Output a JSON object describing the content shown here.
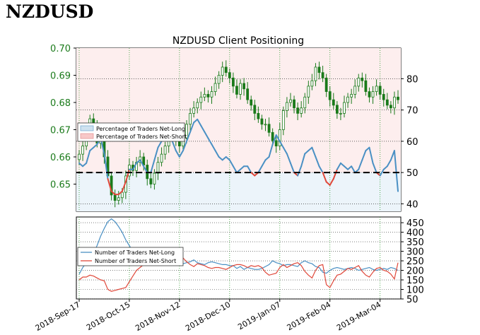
{
  "page_heading": "NZDUSD",
  "chart_data": [
    {
      "type": "candlestick",
      "title": "NZDUSD Client Positioning",
      "left_axis": {
        "ticks": [
          "0.70",
          "0.69",
          "0.68",
          "0.67",
          "0.66",
          "0.65"
        ],
        "ylim": [
          0.64,
          0.7
        ],
        "color": "#1a7a1a"
      },
      "right_axis": {
        "ticks": [
          "80",
          "70",
          "60",
          "50",
          "40"
        ],
        "ylim": [
          37.6,
          89.8
        ]
      },
      "x_ticks": [
        "2018-Sep-17",
        "2018-Oct-15",
        "2018-Nov-12",
        "2018-Dec-10",
        "2019-Jan-07",
        "2019-Feb-04",
        "2019-Mar-04"
      ],
      "reference_line": 50,
      "legend": [
        "Percentage of Traders Net-Long",
        "Percentage of Traders Net-Short"
      ],
      "legend_position": "left",
      "grid": true,
      "series_colors": {
        "net_long": "#4a90c4",
        "net_short": "#e0483a",
        "candle": "#1a7a1a"
      },
      "price_close": [
        0.661,
        0.664,
        0.67,
        0.674,
        0.671,
        0.665,
        0.667,
        0.66,
        0.653,
        0.646,
        0.644,
        0.645,
        0.647,
        0.653,
        0.657,
        0.655,
        0.658,
        0.66,
        0.657,
        0.652,
        0.65,
        0.654,
        0.658,
        0.661,
        0.664,
        0.668,
        0.67,
        0.666,
        0.664,
        0.667,
        0.672,
        0.676,
        0.678,
        0.68,
        0.682,
        0.683,
        0.682,
        0.684,
        0.687,
        0.69,
        0.693,
        0.691,
        0.689,
        0.686,
        0.683,
        0.687,
        0.685,
        0.681,
        0.679,
        0.676,
        0.674,
        0.672,
        0.672,
        0.669,
        0.666,
        0.664,
        0.67,
        0.677,
        0.68,
        0.681,
        0.678,
        0.676,
        0.678,
        0.682,
        0.686,
        0.688,
        0.693,
        0.691,
        0.689,
        0.684,
        0.681,
        0.679,
        0.676,
        0.676,
        0.68,
        0.682,
        0.683,
        0.686,
        0.689,
        0.688,
        0.684,
        0.682,
        0.684,
        0.686,
        0.683,
        0.681,
        0.679,
        0.678,
        0.682,
        0.681
      ],
      "percent_net_long": [
        53,
        52,
        53,
        57,
        58,
        59,
        61,
        56,
        48,
        44,
        43,
        43,
        44,
        47,
        51,
        51,
        53,
        54,
        52,
        50,
        50,
        54,
        58,
        60,
        61,
        63,
        60,
        57,
        55,
        57,
        60,
        63,
        66,
        67,
        65,
        63,
        61,
        59,
        57,
        55,
        54,
        55,
        54,
        52,
        50,
        51,
        52,
        52,
        50,
        49,
        50,
        52,
        54,
        55,
        59,
        62,
        60,
        58,
        56,
        53,
        50,
        49,
        52,
        56,
        57,
        58,
        55,
        52,
        50,
        47,
        46,
        48,
        51,
        53,
        52,
        51,
        52,
        50,
        51,
        54,
        57,
        58,
        53,
        50,
        49,
        51,
        52,
        54,
        57,
        44
      ],
      "traders_net_long": [
        180,
        215,
        240,
        260,
        290,
        330,
        380,
        420,
        455,
        470,
        455,
        430,
        400,
        360,
        330,
        300,
        290,
        270,
        250,
        240,
        240,
        235,
        245,
        255,
        270,
        280,
        255,
        230,
        230,
        235,
        240,
        245,
        255,
        240,
        235,
        230,
        240,
        245,
        240,
        235,
        230,
        230,
        225,
        225,
        210,
        220,
        205,
        215,
        210,
        205,
        205,
        210,
        220,
        230,
        250,
        240,
        235,
        225,
        230,
        230,
        225,
        220,
        240,
        250,
        240,
        235,
        220,
        215,
        190,
        185,
        200,
        210,
        215,
        210,
        205,
        210,
        215,
        210,
        200,
        205,
        210,
        215,
        205,
        200,
        205,
        210,
        205,
        215,
        210,
        200
      ],
      "traders_net_short": [
        150,
        165,
        165,
        175,
        170,
        160,
        150,
        145,
        100,
        90,
        95,
        100,
        105,
        110,
        140,
        170,
        200,
        215,
        230,
        255,
        265,
        270,
        265,
        260,
        250,
        240,
        255,
        275,
        285,
        265,
        245,
        230,
        220,
        235,
        230,
        225,
        215,
        210,
        215,
        215,
        210,
        205,
        215,
        225,
        230,
        230,
        225,
        215,
        225,
        220,
        225,
        215,
        190,
        175,
        180,
        185,
        215,
        230,
        215,
        225,
        235,
        240,
        225,
        195,
        175,
        160,
        200,
        225,
        230,
        125,
        110,
        145,
        175,
        180,
        195,
        210,
        205,
        215,
        225,
        195,
        175,
        165,
        190,
        210,
        215,
        200,
        195,
        180,
        155,
        240
      ],
      "lower_axis": {
        "ticks": [
          "450",
          "400",
          "350",
          "300",
          "250",
          "200",
          "150",
          "100",
          "50"
        ],
        "ylim": [
          50,
          480
        ]
      },
      "lower_legend": [
        "Number of Traders Net-Long",
        "Number of Traders Net-Short"
      ]
    }
  ]
}
